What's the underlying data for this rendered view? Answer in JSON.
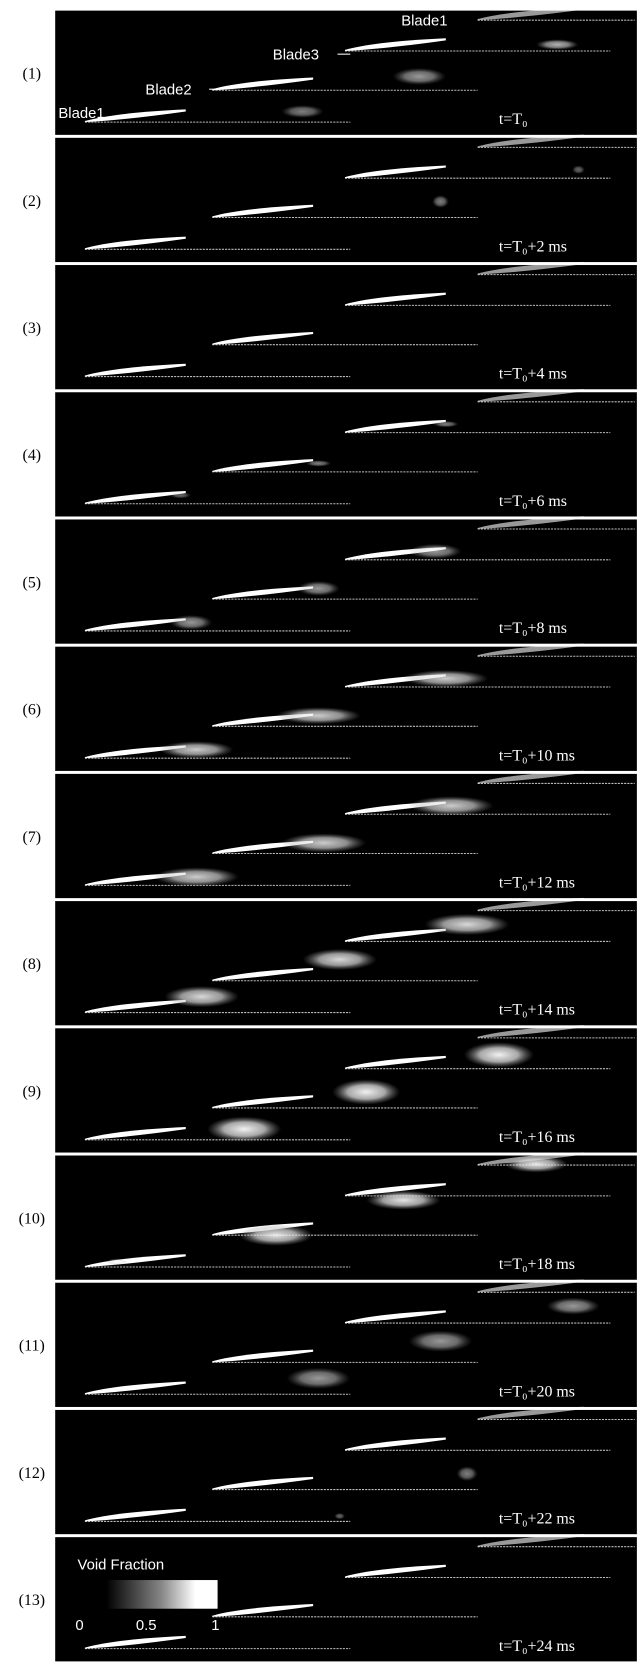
{
  "panels": [
    {
      "label": "(1)",
      "time": "t=T₀"
    },
    {
      "label": "(2)",
      "time": "t=T₀+2 ms"
    },
    {
      "label": "(3)",
      "time": "t=T₀+4 ms"
    },
    {
      "label": "(4)",
      "time": "t=T₀+6 ms"
    },
    {
      "label": "(5)",
      "time": "t=T₀+8 ms"
    },
    {
      "label": "(6)",
      "time": "t=T₀+10 ms"
    },
    {
      "label": "(7)",
      "time": "t=T₀+12 ms"
    },
    {
      "label": "(8)",
      "time": "t=T₀+14 ms"
    },
    {
      "label": "(9)",
      "time": "t=T₀+16 ms"
    },
    {
      "label": "(10)",
      "time": "t=T₀+18 ms"
    },
    {
      "label": "(11)",
      "time": "t=T₀+20 ms"
    },
    {
      "label": "(12)",
      "time": "t=T₀+22 ms"
    },
    {
      "label": "(13)",
      "time": "t=T₀+24 ms"
    }
  ],
  "blade_labels": [
    "Blade1",
    "Blade3",
    "Blade2",
    "Blade1"
  ],
  "colorbar": {
    "title": "Void Fraction",
    "ticks": [
      "0",
      "0.5",
      "1"
    ]
  }
}
